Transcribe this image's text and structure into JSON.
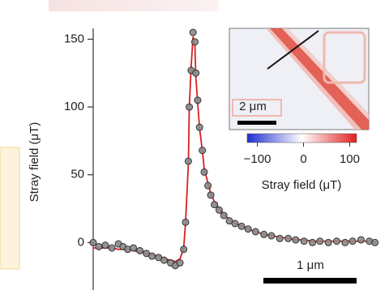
{
  "chart_data": {
    "type": "scatter",
    "ylabel": "Stray field (μT)",
    "ylim": [
      -35,
      158
    ],
    "yticks": [
      0,
      50,
      100,
      150
    ],
    "xlim": [
      0,
      3.04
    ],
    "x": [
      0,
      0.06,
      0.13,
      0.2,
      0.27,
      0.32,
      0.37,
      0.43,
      0.5,
      0.57,
      0.63,
      0.7,
      0.76,
      0.83,
      0.88,
      0.93,
      0.97,
      0.99,
      1.02,
      1.03,
      1.05,
      1.07,
      1.09,
      1.1,
      1.12,
      1.14,
      1.17,
      1.19,
      1.23,
      1.26,
      1.3,
      1.35,
      1.4,
      1.46,
      1.52,
      1.59,
      1.66,
      1.74,
      1.83,
      1.91,
      2,
      2.09,
      2.17,
      2.26,
      2.35,
      2.43,
      2.52,
      2.61,
      2.7,
      2.78,
      2.87,
      2.96,
      3.02
    ],
    "series": [
      {
        "color": "#d62020",
        "line": true,
        "values": [
          -4,
          -4,
          -4,
          -4,
          -5,
          -5,
          -5,
          -6,
          -7,
          -8,
          -9,
          -10,
          -12,
          -13,
          -14,
          -12,
          -4,
          15,
          58,
          100,
          130,
          152,
          145,
          122,
          103,
          84,
          68,
          54,
          44,
          36,
          30,
          25,
          21,
          17,
          14,
          12,
          10,
          8,
          6,
          5,
          4,
          3,
          2,
          2,
          1,
          1,
          1,
          1,
          1,
          1,
          1,
          1,
          0
        ]
      },
      {
        "color": "#8a8a8a",
        "marker": true,
        "values": [
          0,
          -3,
          -2,
          -4,
          -1,
          -3,
          -5,
          -4,
          -6,
          -8,
          -10,
          -11,
          -13,
          -15,
          -17,
          -15,
          -5,
          15,
          60,
          100,
          127,
          155,
          148,
          125,
          105,
          85,
          68,
          52,
          42,
          35,
          28,
          24,
          20,
          16,
          14,
          12,
          10,
          8,
          6,
          5,
          3,
          3,
          2,
          1,
          0,
          1,
          0,
          1,
          0,
          1,
          2,
          1,
          0
        ]
      }
    ],
    "colorbar": {
      "label": "Stray field (μT)",
      "lim": [
        -122,
        115
      ],
      "ticks": [
        {
          "value": -100,
          "label": "−100"
        },
        0,
        100
      ],
      "colors": [
        "#1f2fd0",
        "#ffffff",
        "#e02020"
      ]
    },
    "annotations": [
      "2 μm",
      "1 μm"
    ]
  }
}
